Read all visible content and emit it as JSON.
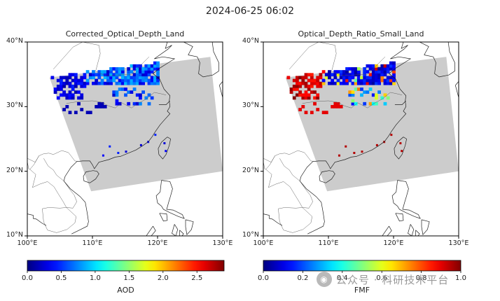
{
  "figure_title": "2024-06-25 06:02",
  "watermark": {
    "text": "公众号 · 科研技术平台",
    "icon": "wechat-icon"
  },
  "colors": {
    "nodata": "#cccccc",
    "coast": "#222222"
  },
  "chart_data": [
    {
      "type": "heatmap",
      "title": "Corrected_Optical_Depth_Land",
      "xlabel": "",
      "ylabel": "",
      "x_ticks": [
        "100°E",
        "110°E",
        "120°E",
        "130°E"
      ],
      "y_ticks": [
        "10°N",
        "20°N",
        "30°N",
        "40°N"
      ],
      "xlim": [
        100,
        130
      ],
      "ylim": [
        10,
        40
      ],
      "colormap": "jet",
      "colorbar": {
        "label": "AOD",
        "ticks": [
          "0.0",
          "0.5",
          "1.0",
          "1.5",
          "2.0",
          "2.5"
        ],
        "range": [
          0,
          2.9
        ]
      },
      "swath_corners_lonlat": [
        [
          103.4,
          34.5
        ],
        [
          128.1,
          37.7
        ],
        [
          130,
          20
        ],
        [
          109.8,
          16.9
        ]
      ],
      "dominant_values": {
        "north_china_plain": 0.6,
        "west_patches": 0.3,
        "southeast_coast": 0.3
      }
    },
    {
      "type": "heatmap",
      "title": "Optical_Depth_Ratio_Small_Land",
      "xlabel": "",
      "ylabel": "",
      "x_ticks": [
        "100°E",
        "110°E",
        "120°E",
        "130°E"
      ],
      "y_ticks": [
        "10°N",
        "20°N",
        "30°N",
        "40°N"
      ],
      "xlim": [
        100,
        130
      ],
      "ylim": [
        10,
        40
      ],
      "colormap": "jet",
      "colorbar": {
        "label": "FMF",
        "ticks": [
          "0.0",
          "0.2",
          "0.4",
          "0.6",
          "0.8",
          "1.0"
        ],
        "range": [
          0,
          1
        ]
      },
      "swath_corners_lonlat": [
        [
          103.4,
          34.5
        ],
        [
          128.1,
          37.7
        ],
        [
          130,
          20
        ],
        [
          109.8,
          16.9
        ]
      ],
      "dominant_values": {
        "north_china_plain": 0.05,
        "west_patches": 0.98,
        "southeast_coast": 0.95
      }
    }
  ]
}
